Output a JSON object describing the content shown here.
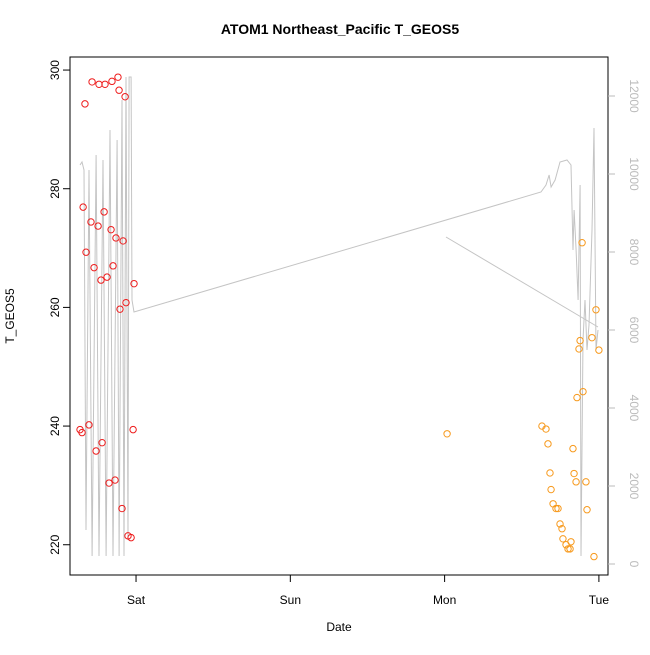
{
  "chart_data": {
    "type": "scatter",
    "title": "ATOM1 Northeast_Pacific T_GEOS5",
    "xlabel": "Date",
    "ylabel": "T_GEOS5",
    "xlim": [
      -0.428,
      3.059
    ],
    "xticks": [
      {
        "value": 0,
        "label": "Sat"
      },
      {
        "value": 1,
        "label": "Sun"
      },
      {
        "value": 2,
        "label": "Mon"
      },
      {
        "value": 3,
        "label": "Tue"
      }
    ],
    "ylim": [
      214.9,
      302.2
    ],
    "yticks": [
      220,
      240,
      260,
      280,
      300
    ],
    "y2lim": [
      -282,
      13000
    ],
    "y2ticks": [
      0,
      2000,
      4000,
      6000,
      8000,
      10000,
      12000
    ],
    "series": [
      {
        "type": "line",
        "axis": "y2",
        "color": "#c4c4c4",
        "x": [
          -0.363,
          -0.35,
          -0.337,
          -0.324,
          -0.305,
          -0.285,
          -0.259,
          -0.24,
          -0.214,
          -0.194,
          -0.169,
          -0.149,
          -0.123,
          -0.11,
          -0.091,
          -0.078,
          -0.065,
          -0.052,
          -0.045,
          -0.032,
          -0.026,
          -0.013,
          2.625,
          2.657,
          2.677,
          2.69,
          2.716,
          2.748,
          2.793,
          2.819,
          2.832,
          2.839,
          2.852,
          2.865,
          2.878,
          2.884,
          2.897,
          2.91,
          2.923,
          2.936,
          2.955,
          2.968,
          2.981,
          2.994,
          null,
          2.009,
          2.994
        ],
        "values": [
          10231,
          10308,
          10103,
          872,
          10103,
          205,
          10487,
          205,
          10359,
          205,
          11128,
          205,
          10872,
          205,
          11897,
          205,
          12487,
          615,
          12487,
          12487,
          6769,
          6462,
          9538,
          9718,
          9974,
          9667,
          9846,
          10308,
          10359,
          10231,
          8051,
          9077,
          8051,
          6769,
          9718,
          205,
          5744,
          6769,
          5487,
          6128,
          8564,
          11179,
          5487,
          6000,
          null,
          8385,
          6077
        ]
      },
      {
        "type": "scatter",
        "color": "#ee1c1c",
        "x": [
          -0.363,
          -0.35,
          -0.305,
          -0.331,
          -0.285,
          -0.24,
          -0.201,
          -0.156,
          -0.117,
          -0.11,
          -0.071,
          -0.343,
          -0.324,
          -0.292,
          -0.272,
          -0.246,
          -0.227,
          -0.207,
          -0.188,
          -0.162,
          -0.149,
          -0.13,
          -0.104,
          -0.084,
          -0.065,
          -0.013,
          -0.259,
          -0.22,
          -0.175,
          -0.136,
          -0.091,
          -0.052,
          -0.032,
          -0.019
        ],
        "values": [
          239.4,
          238.9,
          240.2,
          294.3,
          298.0,
          297.6,
          297.6,
          298.1,
          298.8,
          296.6,
          295.5,
          276.9,
          269.3,
          274.4,
          266.7,
          273.7,
          264.6,
          276.1,
          265.1,
          273.1,
          267.0,
          271.7,
          259.7,
          271.2,
          260.8,
          264.0,
          235.8,
          237.2,
          230.4,
          230.9,
          226.1,
          221.5,
          221.2,
          239.4
        ]
      },
      {
        "type": "scatter",
        "color": "#f7991c",
        "x": [
          2.016,
          2.631,
          2.657,
          2.67,
          2.683,
          2.69,
          2.703,
          2.722,
          2.735,
          2.748,
          2.761,
          2.767,
          2.787,
          2.8,
          2.813,
          2.819,
          2.832,
          2.839,
          2.852,
          2.858,
          2.871,
          2.878,
          2.891,
          2.897,
          2.916,
          2.923,
          2.955,
          2.968,
          2.981,
          3.0
        ],
        "values": [
          238.7,
          240.0,
          239.5,
          237.0,
          232.1,
          229.3,
          226.9,
          226.1,
          226.1,
          223.5,
          222.7,
          221.0,
          220.0,
          219.3,
          219.3,
          220.5,
          236.2,
          232.0,
          230.6,
          244.8,
          253.0,
          254.4,
          270.9,
          245.8,
          230.6,
          225.9,
          254.9,
          218.0,
          259.6,
          252.8
        ]
      }
    ]
  }
}
